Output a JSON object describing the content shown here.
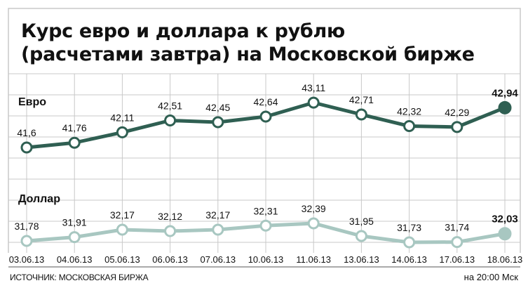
{
  "title_lines": [
    "Курс евро и доллара к рублю",
    "(расчетами завтра) на Московской бирже"
  ],
  "source": "ИСТОЧНИК: МОСКОВСКАЯ БИРЖА",
  "time_note": "на 20:00 Мск",
  "colors": {
    "euro_line": "#2f5f52",
    "dollar_line": "#a8c7c1",
    "grid": "#c8c8c8",
    "frame": "#c8c8c8"
  },
  "chart_data": {
    "type": "line",
    "x": [
      "03.06.13",
      "04.06.13",
      "05.06.13",
      "06.06.13",
      "07.06.13",
      "10.06.13",
      "11.06.13",
      "13.06.13",
      "14.06.13",
      "17.06.13",
      "18.06.13"
    ],
    "series": [
      {
        "name": "Евро",
        "values": [
          41.6,
          41.76,
          42.11,
          42.51,
          42.45,
          42.64,
          43.11,
          42.71,
          42.32,
          42.29,
          42.94
        ],
        "labels": [
          "41,6",
          "41,76",
          "42,11",
          "42,51",
          "42,45",
          "42,64",
          "43,11",
          "42,71",
          "42,32",
          "42,29",
          "42,94"
        ]
      },
      {
        "name": "Доллар",
        "values": [
          31.78,
          31.91,
          32.17,
          32.12,
          32.17,
          32.31,
          32.39,
          31.95,
          31.73,
          31.74,
          32.03
        ],
        "labels": [
          "31,78",
          "31,91",
          "32,17",
          "32,12",
          "32,17",
          "32,31",
          "32,39",
          "31,95",
          "31,73",
          "31,74",
          "32,03"
        ]
      }
    ],
    "grid": true,
    "legend": "inline"
  }
}
